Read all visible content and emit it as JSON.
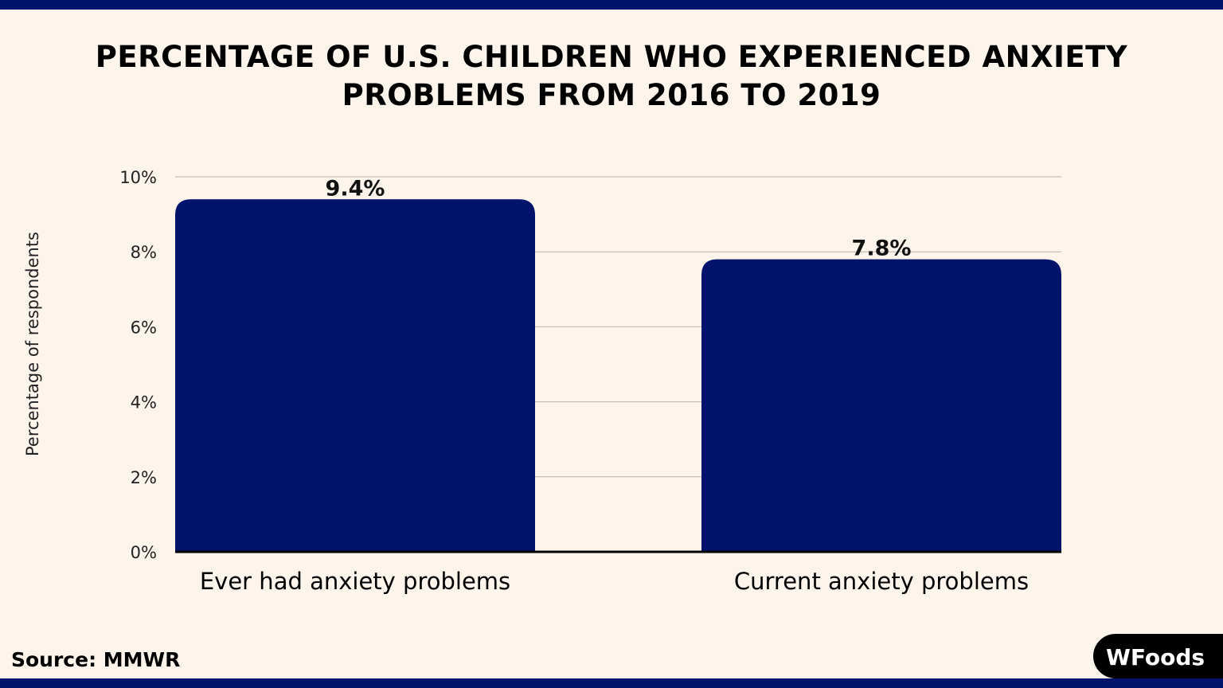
{
  "chart_data": {
    "type": "bar",
    "title": "PERCENTAGE OF U.S. CHILDREN WHO EXPERIENCED ANXIETY PROBLEMS FROM 2016 TO 2019",
    "categories": [
      "Ever had anxiety problems",
      "Current anxiety problems"
    ],
    "values": [
      9.4,
      7.8
    ],
    "data_labels": [
      "9.4%",
      "7.8%"
    ],
    "xlabel": "",
    "ylabel": "Percentage of respondents",
    "ylim": [
      0,
      10
    ],
    "yticks": [
      0,
      2,
      4,
      6,
      8,
      10
    ],
    "ytick_labels": [
      "0%",
      "2%",
      "4%",
      "6%",
      "8%",
      "10%"
    ],
    "grid": true,
    "bar_color": "#02136b"
  },
  "source": "Source: MMWR",
  "logo": "WFoods",
  "colors": {
    "background": "#fdf4ec",
    "accent": "#02136b"
  }
}
